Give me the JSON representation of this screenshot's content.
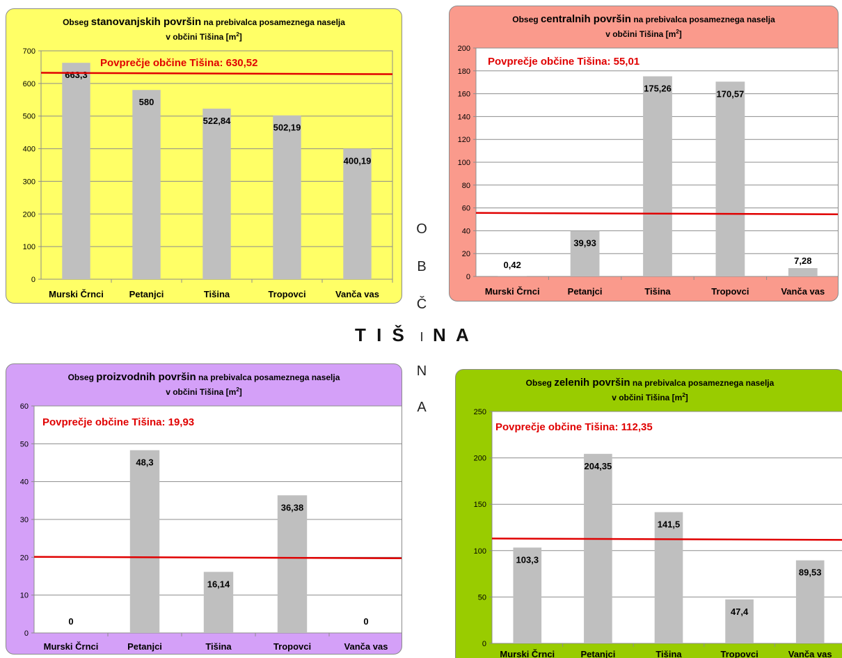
{
  "center_text": {
    "vertical": [
      "O",
      "B",
      "Č",
      "I",
      "N",
      "A"
    ],
    "left_word": "T I Š",
    "right_word": "N A"
  },
  "chart_data": [
    {
      "type": "bar",
      "title_pre": "Obseg",
      "title_big": "stanovanjskih površin",
      "title_post": "na prebivalca posameznega naselja",
      "title_line2": "v občini Tišina [m",
      "title_sup": "2",
      "title_end": "]",
      "categories": [
        "Murski Črnci",
        "Petanjci",
        "Tišina",
        "Tropovci",
        "Vanča vas"
      ],
      "values": [
        663.3,
        580,
        522.84,
        502.19,
        400.19
      ],
      "value_labels": [
        "663,3",
        "580",
        "522,84",
        "502,19",
        "400,19"
      ],
      "ylim": [
        0,
        700
      ],
      "yticks": [
        0,
        100,
        200,
        300,
        400,
        500,
        600,
        700
      ],
      "average": 630.52,
      "average_label": "Povprečje občine Tišina: 630,52",
      "background": "#ffff66",
      "plot_background": "#ffff66",
      "bar_color": "#bfbfbf",
      "avg_color": "#e00000"
    },
    {
      "type": "bar",
      "title_pre": "Obseg",
      "title_big": "centralnih površin",
      "title_post": "na prebivalca posameznega naselja",
      "title_line2": "v občini Tišina [m",
      "title_sup": "2",
      "title_end": "]",
      "categories": [
        "Murski Črnci",
        "Petanjci",
        "Tišina",
        "Tropovci",
        "Vanča vas"
      ],
      "values": [
        0.42,
        39.93,
        175.26,
        170.57,
        7.28
      ],
      "value_labels": [
        "0,42",
        "39,93",
        "175,26",
        "170,57",
        "7,28"
      ],
      "ylim": [
        0,
        200
      ],
      "yticks": [
        0,
        20,
        40,
        60,
        80,
        100,
        120,
        140,
        160,
        180,
        200
      ],
      "average": 55.01,
      "average_label": "Povprečje občine Tišina: 55,01",
      "background": "#fa9a8c",
      "plot_background": "#ffffff",
      "bar_color": "#bfbfbf",
      "avg_color": "#e00000"
    },
    {
      "type": "bar",
      "title_pre": "Obseg",
      "title_big": "proizvodnih površin",
      "title_post": "na prebivalca posameznega naselja",
      "title_line2": "v občini Tišina [m",
      "title_sup": "2",
      "title_end": "]",
      "categories": [
        "Murski Črnci",
        "Petanjci",
        "Tišina",
        "Tropovci",
        "Vanča vas"
      ],
      "values": [
        0,
        48.3,
        16.14,
        36.38,
        0
      ],
      "value_labels": [
        "0",
        "48,3",
        "16,14",
        "36,38",
        "0"
      ],
      "ylim": [
        0,
        60
      ],
      "yticks": [
        0,
        10,
        20,
        30,
        40,
        50,
        60
      ],
      "average": 19.93,
      "average_label": "Povprečje občine Tišina: 19,93",
      "background": "#d4a0f8",
      "plot_background": "#ffffff",
      "bar_color": "#bfbfbf",
      "avg_color": "#e00000"
    },
    {
      "type": "bar",
      "title_pre": "Obseg",
      "title_big": "zelenih površin",
      "title_post": "na prebivalca posameznega naselja",
      "title_line2": "v občini Tišina [m",
      "title_sup": "2",
      "title_end": "]",
      "categories": [
        "Murski Črnci",
        "Petanjci",
        "Tišina",
        "Tropovci",
        "Vanča vas"
      ],
      "values": [
        103.3,
        204.35,
        141.5,
        47.4,
        89.53
      ],
      "value_labels": [
        "103,3",
        "204,35",
        "141,5",
        "47,4",
        "89,53"
      ],
      "ylim": [
        0,
        250
      ],
      "yticks": [
        0,
        50,
        100,
        150,
        200,
        250
      ],
      "average": 112.35,
      "average_label": "Povprečje občine Tišina: 112,35",
      "background": "#99cc00",
      "plot_background": "#ffffff",
      "bar_color": "#bfbfbf",
      "avg_color": "#e00000"
    }
  ]
}
